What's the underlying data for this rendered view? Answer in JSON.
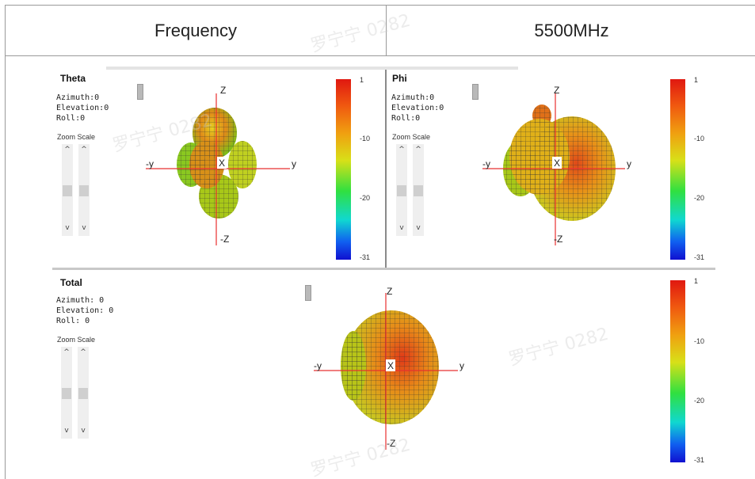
{
  "header": {
    "left": "Frequency",
    "right": "5500MHz"
  },
  "panels": {
    "theta": {
      "title": "Theta",
      "info": "Azimuth:0\nElevation:0\nRoll:0",
      "zoom_scale_label": "Zoom Scale",
      "colorbar_ticks": [
        "1",
        "-10",
        "-20",
        "-31"
      ]
    },
    "phi": {
      "title": "Phi",
      "info": "Azimuth:0\nElevation:0\nRoll:0",
      "zoom_scale_label": "Zoom Scale",
      "colorbar_ticks": [
        "1",
        "-10",
        "-20",
        "-31"
      ]
    },
    "total": {
      "title": "Total",
      "info": "Azimuth: 0\nElevation: 0\nRoll: 0",
      "zoom_scale_label": "Zoom Scale",
      "colorbar_ticks": [
        "1",
        "-10",
        "-20",
        "-31"
      ]
    }
  },
  "axes": {
    "z": "Z",
    "neg_z": "-Z",
    "y": "y",
    "neg_y": "-y",
    "x": "X"
  },
  "watermark": "罗宁宁 0282",
  "colors": {
    "accent_axis": "#e83030",
    "grid": "#333333"
  }
}
